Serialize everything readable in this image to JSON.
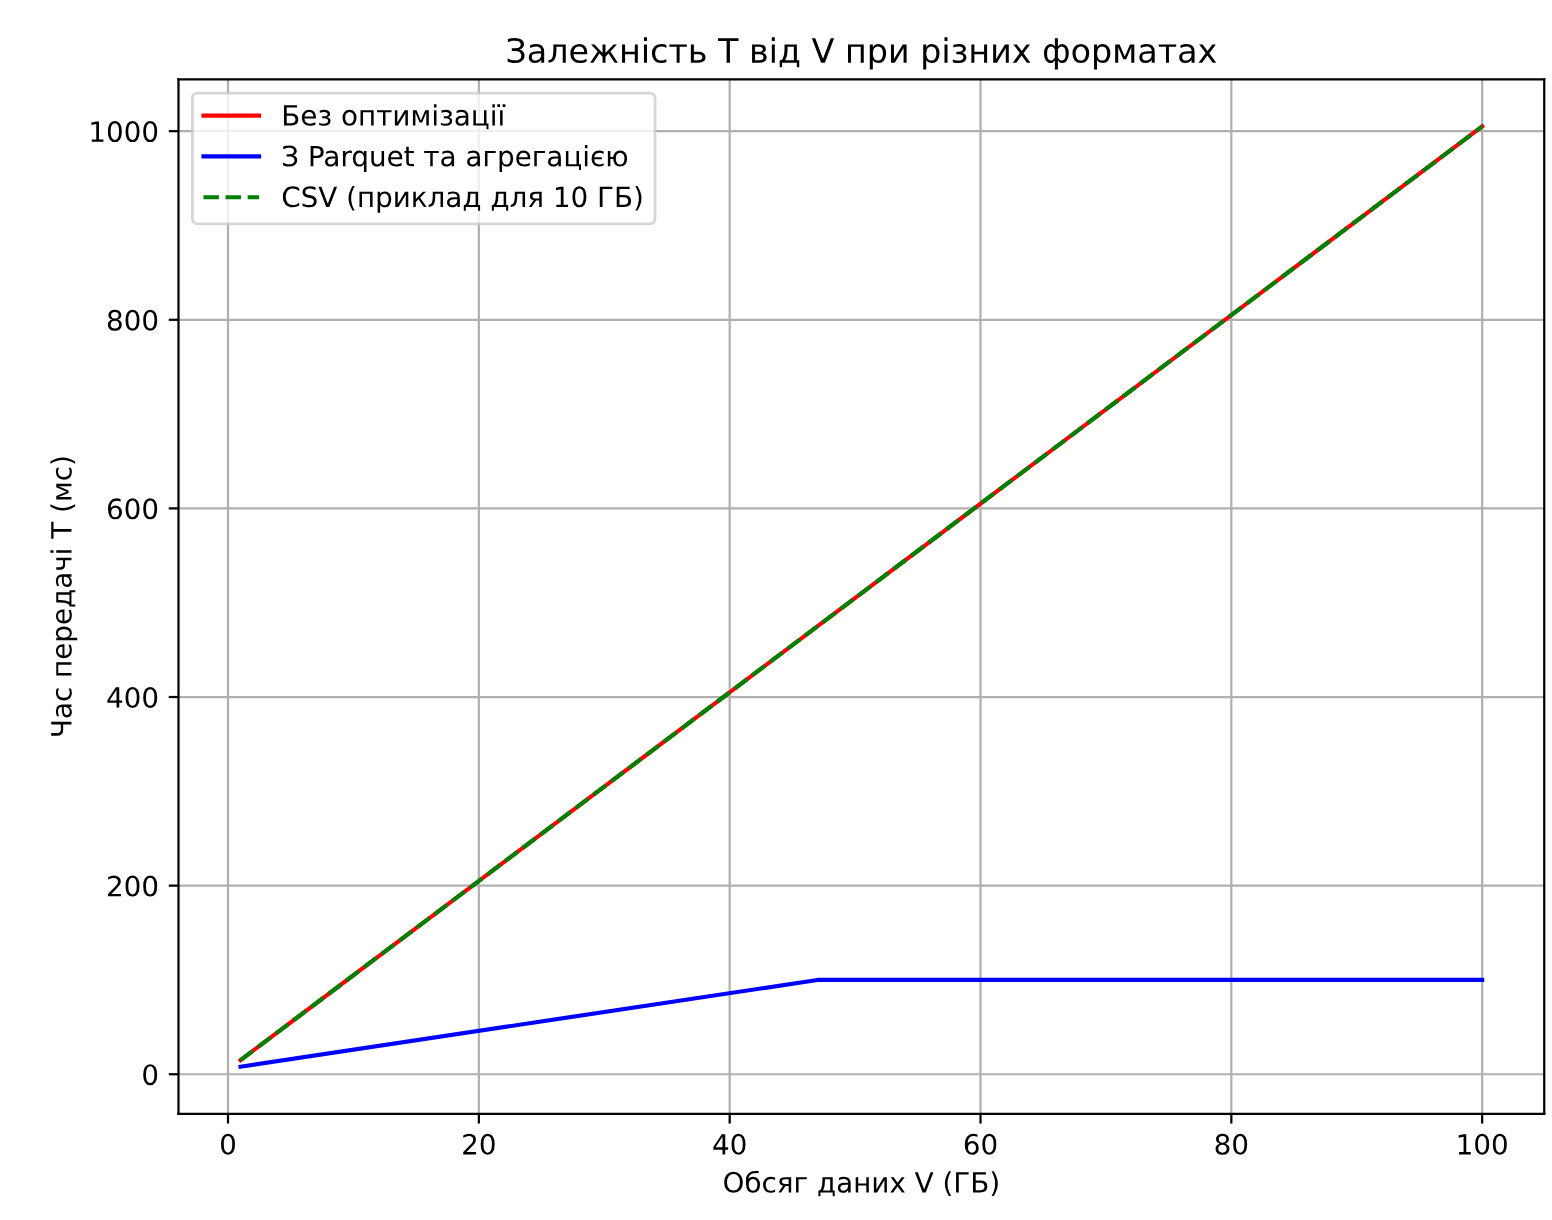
{
  "chart_data": {
    "type": "line",
    "title": "Залежність T від V при різних форматах",
    "xlabel": "Обсяг даних V (ГБ)",
    "ylabel": "Час передачі T (мс)",
    "series": [
      {
        "name": "Без оптимізації",
        "color": "#ff0000",
        "x": [
          1,
          100
        ],
        "values": [
          15,
          1005
        ],
        "line_style": "solid"
      },
      {
        "name": "З Parquet та агрегацією",
        "color": "#0000ff",
        "x": [
          1,
          47,
          100
        ],
        "values": [
          8,
          100,
          100
        ],
        "line_style": "solid"
      },
      {
        "name": "CSV (приклад для 10 ГБ)",
        "color": "#008000",
        "x": [
          1,
          100
        ],
        "values": [
          15,
          1005
        ],
        "line_style": "dashed"
      }
    ],
    "xlim": [
      -3.95,
      104.95
    ],
    "ylim": [
      -42,
      1055
    ],
    "xticks": [
      0,
      20,
      40,
      60,
      80,
      100
    ],
    "yticks": [
      0,
      200,
      400,
      600,
      800,
      1000
    ],
    "grid": true,
    "legend": "top left",
    "marker": "none"
  }
}
